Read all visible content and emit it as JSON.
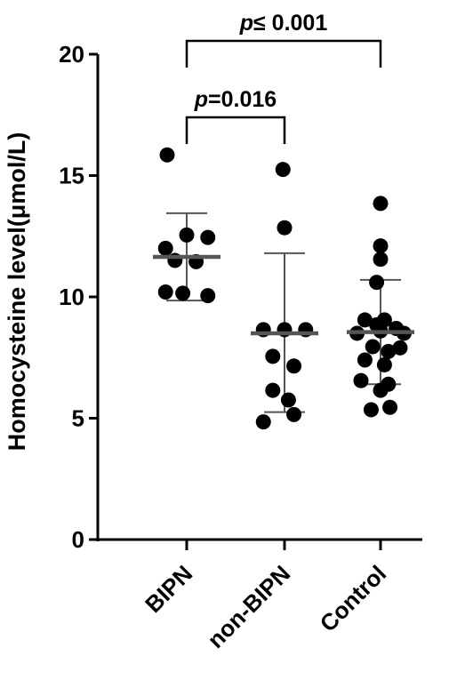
{
  "chart_data": {
    "type": "scatter",
    "title": "",
    "xlabel": "",
    "ylabel": "Homocysteine level(μmol/L)",
    "ylim": [
      0,
      20
    ],
    "yticks": [
      0,
      5,
      10,
      15,
      20
    ],
    "categories": [
      "BIPN",
      "non-BIPN",
      "Control"
    ],
    "grid": false,
    "legend": "none",
    "point_color": "#000000",
    "summary_color": "#555555",
    "groups": [
      {
        "category": "BIPN",
        "mean": 11.65,
        "sd_low": 9.85,
        "sd_high": 13.45,
        "points": [
          {
            "x": -0.25,
            "y": 15.85
          },
          {
            "x": -0.27,
            "y": 12.0
          },
          {
            "x": 0.27,
            "y": 12.45
          },
          {
            "x": 0.0,
            "y": 12.55
          },
          {
            "x": -0.15,
            "y": 11.5
          },
          {
            "x": 0.12,
            "y": 11.45
          },
          {
            "x": -0.27,
            "y": 10.2
          },
          {
            "x": -0.05,
            "y": 10.15
          },
          {
            "x": 0.27,
            "y": 10.05
          }
        ]
      },
      {
        "category": "non-BIPN",
        "mean": 8.5,
        "sd_low": 5.25,
        "sd_high": 11.8,
        "points": [
          {
            "x": -0.02,
            "y": 15.25
          },
          {
            "x": 0.0,
            "y": 12.85
          },
          {
            "x": -0.27,
            "y": 8.65
          },
          {
            "x": 0.0,
            "y": 8.65
          },
          {
            "x": 0.27,
            "y": 8.65
          },
          {
            "x": -0.15,
            "y": 7.55
          },
          {
            "x": 0.12,
            "y": 7.15
          },
          {
            "x": -0.15,
            "y": 6.15
          },
          {
            "x": 0.05,
            "y": 5.75
          },
          {
            "x": -0.27,
            "y": 4.85
          },
          {
            "x": 0.12,
            "y": 5.15
          }
        ]
      },
      {
        "category": "Control",
        "mean": 8.55,
        "sd_low": 6.4,
        "sd_high": 10.7,
        "points": [
          {
            "x": 0.0,
            "y": 13.85
          },
          {
            "x": 0.0,
            "y": 12.1
          },
          {
            "x": 0.0,
            "y": 11.55
          },
          {
            "x": -0.05,
            "y": 10.6
          },
          {
            "x": -0.2,
            "y": 9.05
          },
          {
            "x": 0.05,
            "y": 9.05
          },
          {
            "x": -0.05,
            "y": 8.85
          },
          {
            "x": 0.2,
            "y": 8.7
          },
          {
            "x": 0.0,
            "y": 8.6
          },
          {
            "x": -0.3,
            "y": 8.5
          },
          {
            "x": 0.3,
            "y": 8.5
          },
          {
            "x": -0.1,
            "y": 7.95
          },
          {
            "x": 0.1,
            "y": 7.75
          },
          {
            "x": 0.25,
            "y": 7.9
          },
          {
            "x": -0.2,
            "y": 7.4
          },
          {
            "x": 0.05,
            "y": 7.2
          },
          {
            "x": -0.25,
            "y": 6.55
          },
          {
            "x": 0.1,
            "y": 6.4
          },
          {
            "x": 0.0,
            "y": 6.15
          },
          {
            "x": -0.12,
            "y": 5.35
          },
          {
            "x": 0.12,
            "y": 5.45
          }
        ]
      }
    ],
    "comparisons": [
      {
        "group1": "BIPN",
        "group2": "Control",
        "p_symbol": "p",
        "p_value": "≤ 0.001",
        "bracket_y": 20.55,
        "drop_y": 19.45
      },
      {
        "group1": "BIPN",
        "group2": "non-BIPN",
        "p_symbol": "p",
        "p_value": "=0.016",
        "bracket_y": 17.4,
        "drop_y": 16.3
      }
    ]
  }
}
